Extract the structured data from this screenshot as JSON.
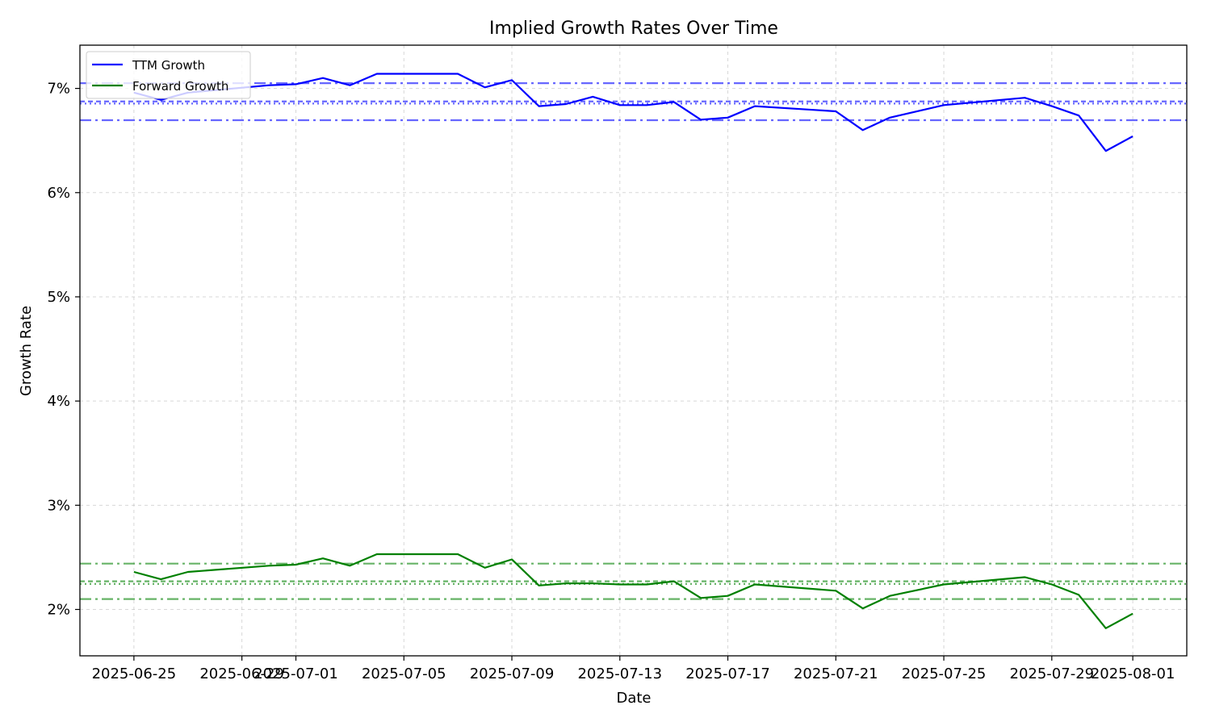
{
  "chart_data": {
    "type": "line",
    "title": "Implied Growth Rates Over Time",
    "xlabel": "Date",
    "ylabel": "Growth Rate",
    "ylim": [
      0.01555,
      0.07415
    ],
    "xlim": [
      "2025-06-23",
      "2025-08-03"
    ],
    "grid": true,
    "legend_position": "top-left",
    "y_ticks": [
      {
        "value": 0.02,
        "label": "2%"
      },
      {
        "value": 0.03,
        "label": "3%"
      },
      {
        "value": 0.04,
        "label": "4%"
      },
      {
        "value": 0.05,
        "label": "5%"
      },
      {
        "value": 0.06,
        "label": "6%"
      },
      {
        "value": 0.07,
        "label": "7%"
      }
    ],
    "x_ticks": [
      {
        "date": "2025-06-25",
        "label": "2025-06-25"
      },
      {
        "date": "2025-06-29",
        "label": "2025-06-29"
      },
      {
        "date": "2025-07-01",
        "label": "2025-07-01"
      },
      {
        "date": "2025-07-05",
        "label": "2025-07-05"
      },
      {
        "date": "2025-07-09",
        "label": "2025-07-09"
      },
      {
        "date": "2025-07-13",
        "label": "2025-07-13"
      },
      {
        "date": "2025-07-17",
        "label": "2025-07-17"
      },
      {
        "date": "2025-07-21",
        "label": "2025-07-21"
      },
      {
        "date": "2025-07-25",
        "label": "2025-07-25"
      },
      {
        "date": "2025-07-29",
        "label": "2025-07-29"
      },
      {
        "date": "2025-08-01",
        "label": "2025-08-01"
      }
    ],
    "x": [
      "2025-06-25",
      "2025-06-26",
      "2025-06-27",
      "2025-06-30",
      "2025-07-01",
      "2025-07-02",
      "2025-07-03",
      "2025-07-04",
      "2025-07-07",
      "2025-07-08",
      "2025-07-09",
      "2025-07-10",
      "2025-07-11",
      "2025-07-12",
      "2025-07-13",
      "2025-07-14",
      "2025-07-15",
      "2025-07-16",
      "2025-07-17",
      "2025-07-18",
      "2025-07-21",
      "2025-07-22",
      "2025-07-23",
      "2025-07-25",
      "2025-07-28",
      "2025-07-29",
      "2025-07-30",
      "2025-07-31",
      "2025-08-01"
    ],
    "series": [
      {
        "name": "TTM Growth",
        "color": "#0000ff",
        "values": [
          0.0696,
          0.0689,
          0.0696,
          0.0703,
          0.0704,
          0.071,
          0.0703,
          0.0714,
          0.0714,
          0.0701,
          0.0708,
          0.0683,
          0.0685,
          0.0692,
          0.0684,
          0.0684,
          0.0687,
          0.067,
          0.0672,
          0.0683,
          0.0678,
          0.066,
          0.0672,
          0.0684,
          0.0691,
          0.0683,
          0.0674,
          0.064,
          0.0654
        ],
        "reference_lines": [
          {
            "value": 0.0705,
            "style": "dashdot"
          },
          {
            "value": 0.06875,
            "style": "dashed"
          },
          {
            "value": 0.06855,
            "style": "dotted"
          },
          {
            "value": 0.06695,
            "style": "dashdot"
          }
        ]
      },
      {
        "name": "Forward Growth",
        "color": "#008000",
        "values": [
          0.0236,
          0.0229,
          0.0236,
          0.0242,
          0.0243,
          0.0249,
          0.0242,
          0.0253,
          0.0253,
          0.024,
          0.0248,
          0.0223,
          0.0225,
          0.0225,
          0.0224,
          0.0224,
          0.0227,
          0.0211,
          0.0213,
          0.0224,
          0.0218,
          0.0201,
          0.0213,
          0.0224,
          0.0231,
          0.0224,
          0.0214,
          0.0182,
          0.0196
        ],
        "reference_lines": [
          {
            "value": 0.0244,
            "style": "dashdot"
          },
          {
            "value": 0.0227,
            "style": "dashed"
          },
          {
            "value": 0.02245,
            "style": "dotted"
          },
          {
            "value": 0.021,
            "style": "dashdot"
          }
        ]
      }
    ]
  }
}
